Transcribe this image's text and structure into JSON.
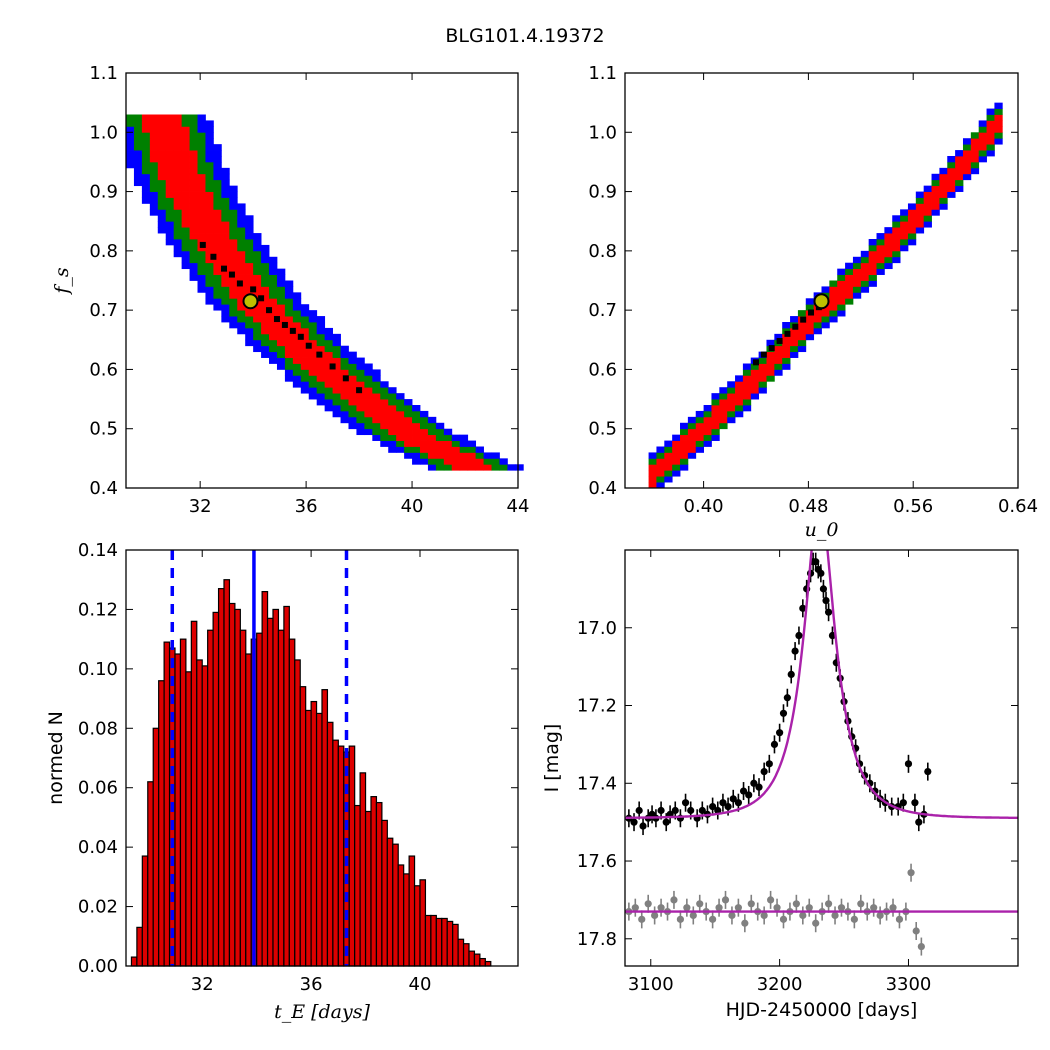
{
  "figure": {
    "suptitle": "BLG101.4.19372"
  },
  "colors": {
    "sigma1": "#ff0000",
    "sigma2": "#008000",
    "sigma3": "#0000ff",
    "chain": "#000000",
    "best_marker": "#bfbf00",
    "hist_fill": "#dd0000",
    "median_line": "#0000ff",
    "model": "#aa22aa",
    "data_main": "#000000",
    "data_ref": "#808080"
  },
  "chart_data": [
    {
      "id": "tE-fs",
      "type": "heatmap",
      "xlabel": "",
      "ylabel": "f_s",
      "xlim": [
        29.2,
        44
      ],
      "ylim": [
        0.4,
        1.1
      ],
      "xticks": [
        32,
        36,
        40,
        44
      ],
      "yticks": [
        0.4,
        0.5,
        0.6,
        0.7,
        0.8,
        0.9,
        1.0,
        1.1
      ],
      "contour_axis": "x",
      "cell": [
        0.3,
        0.01
      ],
      "center_points": [
        [
          30.5,
          1.03
        ],
        [
          31.3,
          0.92
        ],
        [
          32.5,
          0.82
        ],
        [
          34.0,
          0.72
        ],
        [
          35.5,
          0.65
        ],
        [
          37.5,
          0.57
        ],
        [
          40.0,
          0.49
        ],
        [
          42.5,
          0.43
        ]
      ],
      "half_widths": {
        "sigma1": 0.8,
        "sigma2": 1.3,
        "sigma3": 1.8
      },
      "chain_points": [
        [
          32.1,
          0.81
        ],
        [
          32.5,
          0.79
        ],
        [
          32.9,
          0.77
        ],
        [
          33.2,
          0.76
        ],
        [
          33.5,
          0.745
        ],
        [
          34.0,
          0.735
        ],
        [
          34.3,
          0.72
        ],
        [
          34.6,
          0.7
        ],
        [
          34.9,
          0.685
        ],
        [
          35.2,
          0.675
        ],
        [
          35.5,
          0.665
        ],
        [
          35.8,
          0.655
        ],
        [
          36.1,
          0.64
        ],
        [
          36.5,
          0.625
        ],
        [
          37.0,
          0.605
        ],
        [
          37.5,
          0.585
        ],
        [
          38.0,
          0.565
        ]
      ],
      "best": [
        33.9,
        0.715
      ]
    },
    {
      "id": "u0-fs",
      "type": "heatmap",
      "xlabel": "u_0",
      "ylabel": "",
      "xlim": [
        0.34,
        0.64
      ],
      "ylim": [
        0.4,
        1.1
      ],
      "xticks": [
        0.4,
        0.48,
        0.56,
        0.64
      ],
      "yticks": [
        0.4,
        0.5,
        0.6,
        0.7,
        0.8,
        0.9,
        1.0,
        1.1
      ],
      "contour_axis": "y",
      "cell": [
        0.006,
        0.01
      ],
      "center_points": [
        [
          0.36,
          0.42
        ],
        [
          0.4,
          0.5
        ],
        [
          0.44,
          0.585
        ],
        [
          0.48,
          0.68
        ],
        [
          0.52,
          0.76
        ],
        [
          0.56,
          0.85
        ],
        [
          0.6,
          0.95
        ],
        [
          0.63,
          1.03
        ]
      ],
      "half_widths": {
        "sigma1": 0.018,
        "sigma2": 0.027,
        "sigma3": 0.036
      },
      "chain_points": [
        [
          0.44,
          0.612
        ],
        [
          0.446,
          0.625
        ],
        [
          0.452,
          0.636
        ],
        [
          0.458,
          0.648
        ],
        [
          0.464,
          0.66
        ],
        [
          0.47,
          0.672
        ],
        [
          0.476,
          0.684
        ],
        [
          0.482,
          0.696
        ],
        [
          0.488,
          0.705
        ]
      ],
      "best": [
        0.49,
        0.715
      ]
    },
    {
      "id": "tE-hist",
      "type": "bar",
      "xlabel": "t_E  [days]",
      "ylabel": "normed N",
      "xlim": [
        29.2,
        43.6
      ],
      "ylim": [
        0.0,
        0.14
      ],
      "xticks": [
        32,
        36,
        40
      ],
      "yticks": [
        0.0,
        0.02,
        0.04,
        0.06,
        0.08,
        0.1,
        0.12,
        0.14
      ],
      "bin_start": 29.4,
      "bin_width": 0.2,
      "values": [
        0.003,
        0.013,
        0.037,
        0.062,
        0.08,
        0.096,
        0.109,
        0.107,
        0.105,
        0.11,
        0.099,
        0.116,
        0.103,
        0.101,
        0.113,
        0.119,
        0.127,
        0.13,
        0.122,
        0.12,
        0.113,
        0.105,
        0.11,
        0.112,
        0.126,
        0.117,
        0.12,
        0.113,
        0.121,
        0.11,
        0.103,
        0.094,
        0.086,
        0.089,
        0.085,
        0.093,
        0.082,
        0.076,
        0.074,
        0.072,
        0.074,
        0.054,
        0.065,
        0.052,
        0.057,
        0.055,
        0.049,
        0.043,
        0.041,
        0.034,
        0.031,
        0.037,
        0.027,
        0.029,
        0.017,
        0.017,
        0.016,
        0.016,
        0.015,
        0.014,
        0.009,
        0.0075,
        0.005,
        0.004,
        0.0025,
        0.0015
      ],
      "median": 33.9,
      "lower": 30.9,
      "upper": 37.3
    },
    {
      "id": "lightcurve",
      "type": "scatter",
      "xlabel": "HJD-2450000 [days]",
      "ylabel": "I [mag]",
      "xlim": [
        3080,
        3385
      ],
      "ylim": [
        17.87,
        16.8
      ],
      "y_inverted": true,
      "xticks": [
        3100,
        3200,
        3300
      ],
      "yticks": [
        17.0,
        17.2,
        17.4,
        17.6,
        17.8
      ],
      "model": {
        "t0": 3231,
        "u0": 0.44,
        "tE": 28,
        "baseline": 17.49,
        "amplitude": 0.815,
        "ref_baseline": 17.73
      },
      "series": [
        {
          "x": [
            3083,
            3087,
            3091,
            3094,
            3098,
            3101,
            3104,
            3108,
            3112,
            3115,
            3119,
            3123,
            3127,
            3131,
            3136,
            3140,
            3144,
            3148,
            3152,
            3156,
            3160,
            3164,
            3168,
            3172,
            3176,
            3180,
            3184,
            3188,
            3192,
            3196,
            3200,
            3203,
            3206,
            3209,
            3212,
            3215,
            3218,
            3221,
            3224,
            3226,
            3228,
            3230,
            3232,
            3234,
            3236,
            3238,
            3241,
            3244,
            3247,
            3250,
            3253,
            3256,
            3259,
            3262,
            3266,
            3270,
            3274,
            3278,
            3282,
            3287,
            3292,
            3296,
            3300,
            3305,
            3308,
            3312,
            3315
          ],
          "y": [
            17.49,
            17.5,
            17.47,
            17.51,
            17.49,
            17.48,
            17.49,
            17.47,
            17.5,
            17.48,
            17.47,
            17.49,
            17.45,
            17.47,
            17.49,
            17.47,
            17.48,
            17.46,
            17.47,
            17.45,
            17.46,
            17.44,
            17.45,
            17.42,
            17.43,
            17.4,
            17.41,
            17.37,
            17.35,
            17.3,
            17.27,
            17.22,
            17.18,
            17.12,
            17.06,
            17.02,
            16.95,
            16.9,
            16.86,
            16.83,
            16.83,
            16.85,
            16.86,
            16.9,
            16.93,
            16.96,
            17.02,
            17.09,
            17.13,
            17.19,
            17.24,
            17.28,
            17.31,
            17.35,
            17.38,
            17.4,
            17.42,
            17.44,
            17.45,
            17.46,
            17.46,
            17.45,
            17.35,
            17.45,
            17.5,
            17.48,
            17.37
          ]
        },
        {
          "x": [
            3083,
            3088,
            3093,
            3098,
            3103,
            3108,
            3113,
            3118,
            3123,
            3128,
            3133,
            3138,
            3143,
            3148,
            3153,
            3158,
            3163,
            3168,
            3173,
            3178,
            3183,
            3188,
            3193,
            3198,
            3203,
            3208,
            3213,
            3218,
            3223,
            3228,
            3233,
            3238,
            3243,
            3248,
            3253,
            3258,
            3263,
            3268,
            3273,
            3278,
            3283,
            3288,
            3293,
            3298,
            3302,
            3306,
            3310
          ],
          "y": [
            17.73,
            17.72,
            17.75,
            17.71,
            17.74,
            17.72,
            17.73,
            17.7,
            17.75,
            17.72,
            17.74,
            17.71,
            17.73,
            17.75,
            17.72,
            17.7,
            17.74,
            17.72,
            17.76,
            17.71,
            17.73,
            17.74,
            17.7,
            17.72,
            17.75,
            17.73,
            17.71,
            17.74,
            17.72,
            17.76,
            17.73,
            17.71,
            17.74,
            17.72,
            17.73,
            17.75,
            17.71,
            17.73,
            17.72,
            17.74,
            17.73,
            17.72,
            17.75,
            17.73,
            17.63,
            17.78,
            17.82
          ]
        }
      ]
    }
  ]
}
